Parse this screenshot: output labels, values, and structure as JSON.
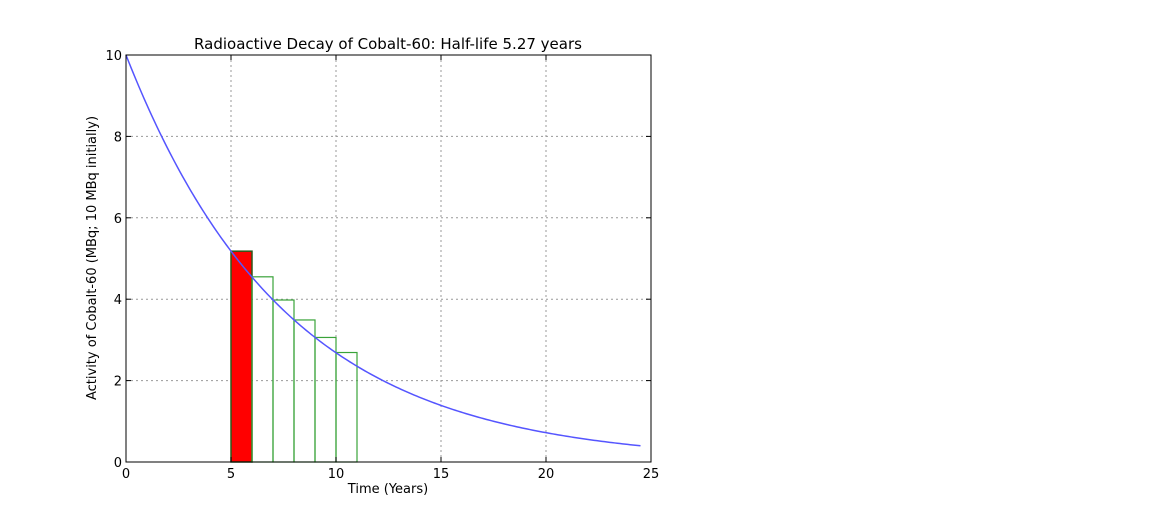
{
  "chart_data": {
    "type": "line",
    "title": "Radioactive Decay of Cobalt-60: Half-life 5.27 years",
    "xlabel": "Time (Years)",
    "ylabel": "Activity of Cobalt-60 (MBq; 10 MBq initially)",
    "xlim": [
      0,
      25
    ],
    "ylim": [
      0,
      10
    ],
    "xticks": [
      0,
      5,
      10,
      15,
      20,
      25
    ],
    "yticks": [
      0,
      2,
      4,
      6,
      8,
      10
    ],
    "grid": true,
    "series": [
      {
        "type": "line",
        "initial_activity": 10,
        "half_life": 5.27,
        "x_start": 0,
        "x_end": 24.5,
        "color": "#5555ff"
      }
    ],
    "bars": [
      {
        "x0": 5,
        "x1": 6,
        "value": 5.18,
        "highlight": true
      },
      {
        "x0": 6,
        "x1": 7,
        "value": 4.55,
        "highlight": false
      },
      {
        "x0": 7,
        "x1": 8,
        "value": 3.98,
        "highlight": false
      },
      {
        "x0": 8,
        "x1": 9,
        "value": 3.49,
        "highlight": false
      },
      {
        "x0": 9,
        "x1": 10,
        "value": 3.06,
        "highlight": false
      },
      {
        "x0": 10,
        "x1": 11,
        "value": 2.69,
        "highlight": false
      }
    ],
    "colors": {
      "highlight_fill": "#ff0000",
      "highlight_edge": "#2a5a1a",
      "bar_edge": "#3aa33a",
      "grid": "#999999"
    }
  }
}
